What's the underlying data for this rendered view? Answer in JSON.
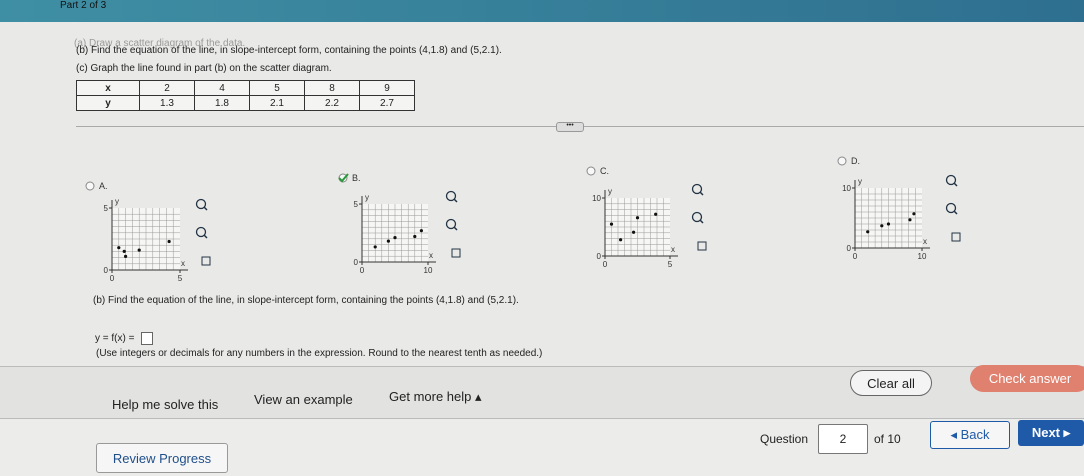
{
  "header": {
    "part": "Part 2 of 3"
  },
  "instructions": [
    "(a) Draw a scatter diagram of the data.",
    "(b) Find the equation of the line, in slope-intercept form, containing the points (4,1.8) and (5,2.1).",
    "(c) Graph the line found in part (b) on the scatter diagram."
  ],
  "table": {
    "rows": [
      [
        "x",
        "2",
        "4",
        "5",
        "8",
        "9"
      ],
      [
        "y",
        "1.3",
        "1.8",
        "2.1",
        "2.2",
        "2.7"
      ]
    ]
  },
  "options": [
    {
      "label": "A.",
      "graph": {
        "x_label": "x",
        "y_label": "y",
        "xlim": [
          0,
          5
        ],
        "ylim": [
          0,
          5
        ],
        "xticks": [
          0,
          5
        ],
        "yticks": [
          0,
          5
        ],
        "points": {
          "x": [
            0.5,
            0.9,
            1,
            2,
            4.2
          ],
          "y": [
            1.8,
            1.5,
            1.1,
            1.6,
            2.3
          ]
        }
      }
    },
    {
      "label": "B.",
      "graph": {
        "x_label": "x",
        "y_label": "y",
        "xlim": [
          0,
          10
        ],
        "ylim": [
          0,
          5
        ],
        "xticks": [
          0,
          10
        ],
        "yticks": [
          0,
          5
        ],
        "points": {
          "x": [
            2,
            4,
            5,
            8,
            9
          ],
          "y": [
            1.3,
            1.8,
            2.1,
            2.2,
            2.7
          ]
        }
      }
    },
    {
      "label": "C.",
      "graph": {
        "x_label": "x",
        "y_label": "y",
        "xlim": [
          0,
          5
        ],
        "ylim": [
          0,
          10
        ],
        "xticks": [
          0,
          5
        ],
        "yticks": [
          0,
          10
        ],
        "points": {
          "x": [
            0.5,
            1.2,
            2.2,
            2.5,
            3.9
          ],
          "y": [
            5.5,
            2.8,
            4.1,
            6.6,
            7.2
          ]
        }
      }
    },
    {
      "label": "D.",
      "graph": {
        "x_label": "x",
        "y_label": "y",
        "xlim": [
          0,
          10
        ],
        "ylim": [
          0,
          10
        ],
        "xticks": [
          0,
          10
        ],
        "yticks": [
          0,
          10
        ],
        "points": {
          "x": [
            1.9,
            4,
            5,
            8.2,
            8.8
          ],
          "y": [
            2.7,
            3.7,
            4,
            4.7,
            5.7
          ]
        }
      }
    }
  ],
  "question": {
    "prompt": "(b) Find the equation of the line, in slope-intercept form, containing the points (4,1.8) and (5,2.1).",
    "answer_prefix": "y = f(x) =",
    "hint": "(Use integers or decimals for any numbers in the expression. Round to the nearest tenth as needed.)"
  },
  "actions": {
    "help": "Help me solve this",
    "example": "View an example",
    "more_help": "Get more help ▴",
    "clear": "Clear all",
    "check": "Check answer"
  },
  "footer": {
    "review": "Review Progress",
    "question_label": "Question",
    "question_number": "2",
    "of_total": "of 10",
    "back": "◂ Back",
    "next": "Next ▸"
  }
}
